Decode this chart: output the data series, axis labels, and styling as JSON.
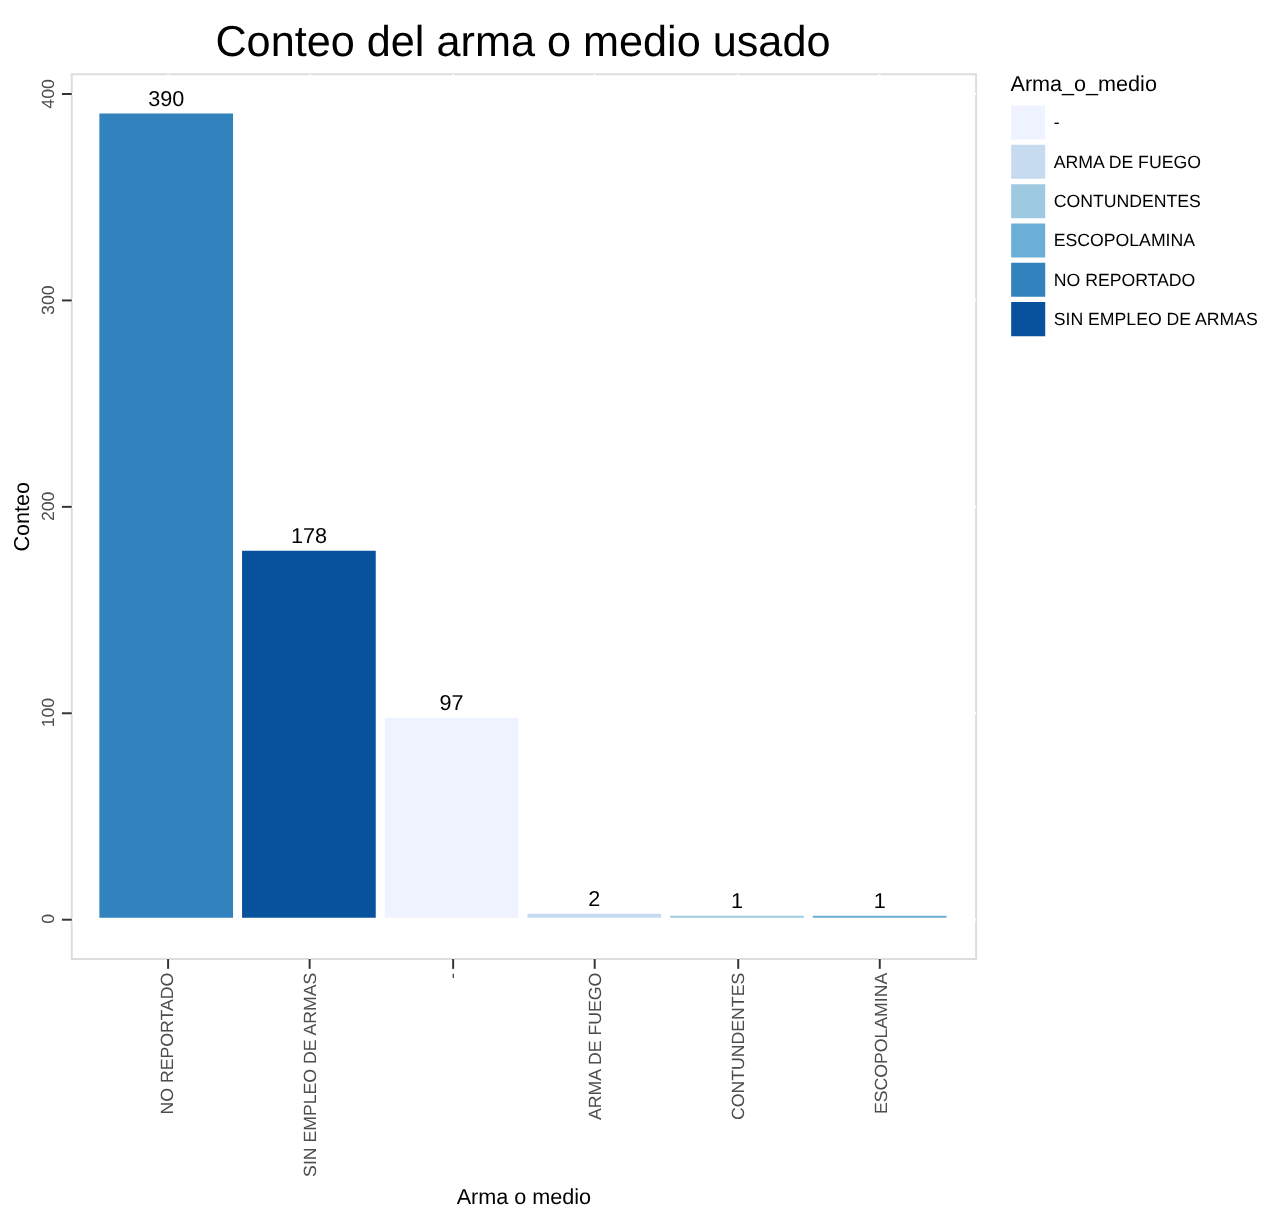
{
  "chart_data": {
    "type": "bar",
    "title": "Conteo del arma o medio usado",
    "xlabel": "Arma o medio",
    "ylabel": "Conteo",
    "legend_title": "Arma_o_medio",
    "categories": [
      "NO REPORTADO",
      "SIN EMPLEO DE ARMAS",
      "-",
      "ARMA DE FUEGO",
      "CONTUNDENTES",
      "ESCOPOLAMINA"
    ],
    "series": [
      {
        "name": "-",
        "color": "#eff3ff",
        "values": [
          null,
          null,
          97,
          null,
          null,
          null
        ]
      },
      {
        "name": "ARMA DE FUEGO",
        "color": "#c6dbef",
        "values": [
          null,
          null,
          null,
          2,
          null,
          null
        ]
      },
      {
        "name": "CONTUNDENTES",
        "color": "#9ecae1",
        "values": [
          null,
          null,
          null,
          null,
          1,
          null
        ]
      },
      {
        "name": "ESCOPOLAMINA",
        "color": "#6baed6",
        "values": [
          null,
          null,
          null,
          null,
          null,
          1
        ]
      },
      {
        "name": "NO REPORTADO",
        "color": "#3182bd",
        "values": [
          390,
          null,
          null,
          null,
          null,
          null
        ]
      },
      {
        "name": "SIN EMPLEO DE ARMAS",
        "color": "#08519c",
        "values": [
          null,
          178,
          null,
          null,
          null,
          null
        ]
      }
    ],
    "ylim": [
      -19.5,
      409.5
    ],
    "yticks": [
      0,
      100,
      200,
      300,
      400
    ],
    "grid": true,
    "legend": "right",
    "data_labels": true
  }
}
